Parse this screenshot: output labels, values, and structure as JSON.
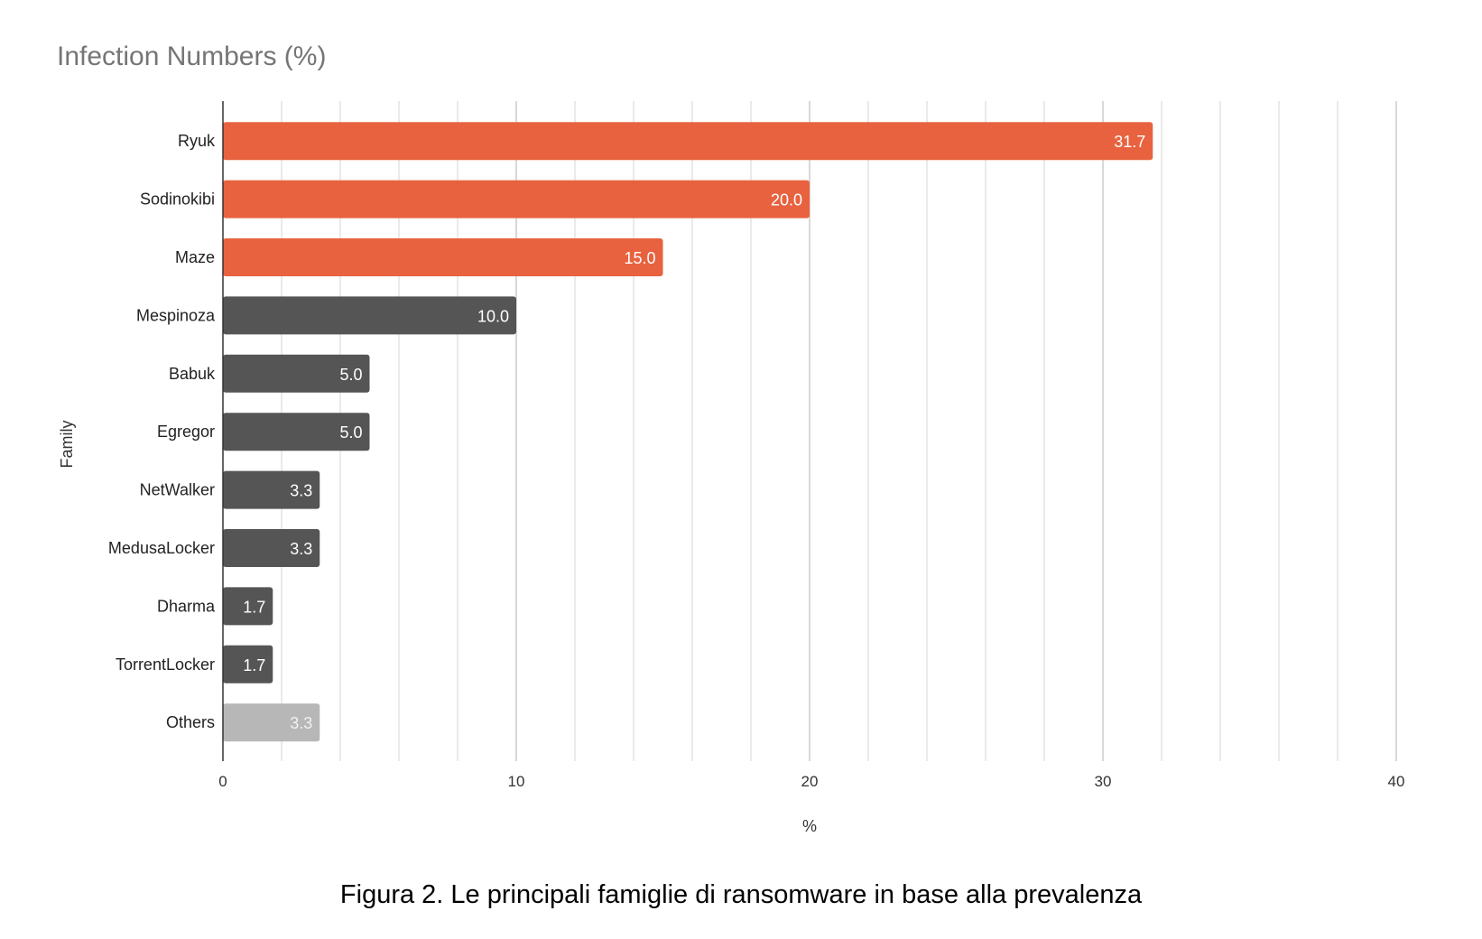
{
  "chart_data": {
    "type": "bar",
    "orientation": "horizontal",
    "title": "Infection Numbers (%)",
    "xlabel": "%",
    "ylabel": "Family",
    "categories": [
      "Ryuk",
      "Sodinokibi",
      "Maze",
      "Mespinoza",
      "Babuk",
      "Egregor",
      "NetWalker",
      "MedusaLocker",
      "Dharma",
      "TorrentLocker",
      "Others"
    ],
    "values": [
      31.7,
      20.0,
      15.0,
      10.0,
      5.0,
      5.0,
      3.3,
      3.3,
      1.7,
      1.7,
      3.3
    ],
    "data_labels": [
      "31.7",
      "20.0",
      "15.0",
      "10.0",
      "5.0",
      "5.0",
      "3.3",
      "3.3",
      "1.7",
      "1.7",
      "3.3"
    ],
    "bar_colors": [
      "#e8623f",
      "#e8623f",
      "#e8623f",
      "#555555",
      "#555555",
      "#555555",
      "#555555",
      "#555555",
      "#555555",
      "#555555",
      "#b7b7b7"
    ],
    "xlim": [
      0,
      40
    ],
    "xticks": [
      0,
      10,
      20,
      30,
      40
    ],
    "minor_gridline_step": 2,
    "grid": true,
    "legend": "none"
  },
  "caption": "Figura 2. Le principali famiglie di ransomware in base alla prevalenza"
}
